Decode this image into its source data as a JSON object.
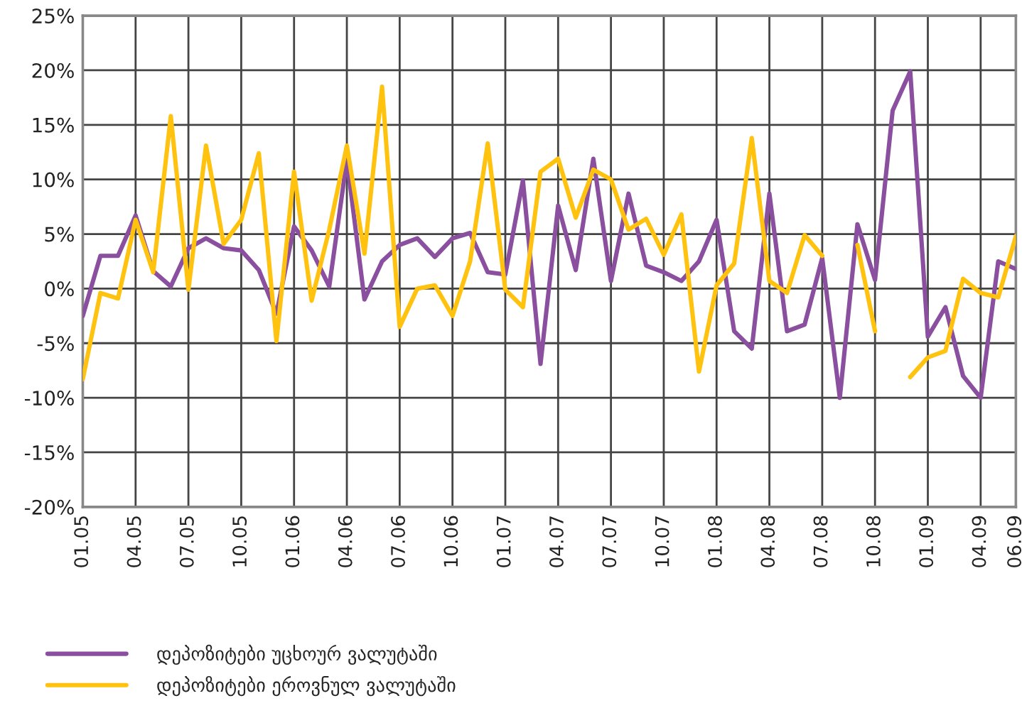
{
  "chart_data": {
    "type": "line",
    "categories": [
      "01.05",
      null,
      null,
      "04.05",
      null,
      null,
      "07.05",
      null,
      null,
      "10.05",
      null,
      null,
      "01.06",
      null,
      null,
      "04.06",
      null,
      null,
      "07.06",
      null,
      null,
      "10.06",
      null,
      null,
      "01.07",
      null,
      null,
      "04.07",
      null,
      null,
      "07.07",
      null,
      null,
      "10.07",
      null,
      null,
      "01.08",
      null,
      null,
      "04.08",
      null,
      null,
      "07.08",
      null,
      null,
      "10.08",
      null,
      null,
      "01.09",
      null,
      null,
      "04.09",
      null,
      "06.09"
    ],
    "series": [
      {
        "name": "დეპოზიტები უცხოურ ვალუტაში",
        "color": "#8a4f9e",
        "values": [
          -2.5,
          3.0,
          3.0,
          6.7,
          1.6,
          0.2,
          3.7,
          4.6,
          3.7,
          3.5,
          1.7,
          -2.3,
          5.7,
          3.5,
          0.2,
          11.8,
          -1.0,
          2.5,
          4.0,
          4.6,
          2.9,
          4.6,
          5.1,
          1.5,
          1.3,
          9.9,
          -6.9,
          7.6,
          1.7,
          11.9,
          0.7,
          8.7,
          2.1,
          1.5,
          0.7,
          2.5,
          6.3,
          -3.9,
          -5.5,
          8.7,
          -3.9,
          -3.3,
          2.8,
          -10.0,
          5.9,
          0.8,
          16.3,
          19.9,
          -4.4,
          -1.7,
          -8.0,
          -10.0,
          2.5,
          1.8
        ]
      },
      {
        "name": "დეპოზიტები ეროვნულ ვალუტაში",
        "color": "#ffc20e",
        "values": [
          -8.3,
          -0.4,
          -0.9,
          6.3,
          1.5,
          15.8,
          -0.1,
          13.1,
          4.1,
          6.3,
          12.4,
          -4.8,
          10.7,
          -1.1,
          5.4,
          13.1,
          3.2,
          18.5,
          -3.5,
          0.0,
          0.3,
          -2.5,
          2.5,
          13.3,
          -0.1,
          -1.7,
          10.7,
          11.9,
          6.5,
          10.9,
          10.0,
          5.4,
          6.4,
          3.1,
          6.8,
          -7.6,
          0.3,
          2.3,
          13.8,
          0.7,
          -0.4,
          4.9,
          3.0,
          null,
          4.0,
          -3.9,
          null,
          -8.1,
          -6.3,
          -5.7,
          0.9,
          -0.4,
          -0.8,
          4.8
        ]
      }
    ],
    "ylim": [
      -20,
      25
    ],
    "yticks": [
      {
        "value": -20,
        "label": "-20%"
      },
      {
        "value": -15,
        "label": "-15%"
      },
      {
        "value": -10,
        "label": "-10%"
      },
      {
        "value": -5,
        "label": "-5%"
      },
      {
        "value": 0,
        "label": "0%"
      },
      {
        "value": 5,
        "label": "5%"
      },
      {
        "value": 10,
        "label": "10%"
      },
      {
        "value": 15,
        "label": "15%"
      },
      {
        "value": 20,
        "label": "20%"
      },
      {
        "value": 25,
        "label": "25%"
      }
    ],
    "grid": true,
    "legend": "bottom left",
    "line_style": "solid",
    "marker": "none"
  }
}
